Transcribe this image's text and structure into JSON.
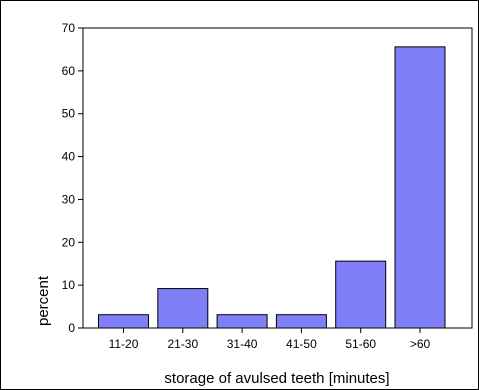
{
  "chart_data": {
    "type": "bar",
    "categories": [
      "11-20",
      "21-30",
      "31-40",
      "41-50",
      "51-60",
      ">60"
    ],
    "values": [
      3.1,
      9.2,
      3.1,
      3.1,
      15.6,
      65.6
    ],
    "xlabel": "storage of avulsed teeth [minutes]",
    "ylabel": "percent",
    "ylim": [
      0,
      70
    ],
    "yticks": [
      "0",
      "10",
      "20",
      "30",
      "40",
      "50",
      "60",
      "70"
    ],
    "grid": false,
    "bar_color": "#7f7ff7",
    "bar_edge_color": "#000000"
  }
}
